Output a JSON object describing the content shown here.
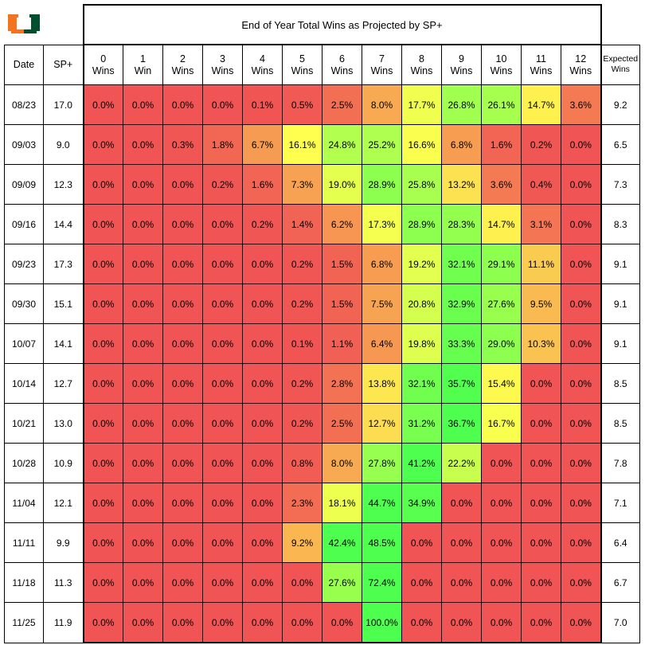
{
  "chart_data": {
    "type": "heatmap",
    "title": "End of Year Total Wins as Projected by SP+",
    "row_headers": [
      "Date",
      "SP+"
    ],
    "outcome_columns": [
      "0\nWins",
      "1\nWin",
      "2\nWins",
      "3\nWins",
      "4\nWins",
      "5\nWins",
      "6\nWins",
      "7\nWins",
      "8\nWins",
      "9\nWins",
      "10\nWins",
      "11\nWins",
      "12\nWins"
    ],
    "expected_header": "Expected\nWins",
    "rows": [
      {
        "date": "08/23",
        "sp": "17.0",
        "probs": [
          "0.0%",
          "0.0%",
          "0.0%",
          "0.0%",
          "0.1%",
          "0.5%",
          "2.5%",
          "8.0%",
          "17.7%",
          "26.8%",
          "26.1%",
          "14.7%",
          "3.6%"
        ],
        "expected": "9.2"
      },
      {
        "date": "09/03",
        "sp": "9.0",
        "probs": [
          "0.0%",
          "0.0%",
          "0.3%",
          "1.8%",
          "6.7%",
          "16.1%",
          "24.8%",
          "25.2%",
          "16.6%",
          "6.8%",
          "1.6%",
          "0.2%",
          "0.0%"
        ],
        "expected": "6.5"
      },
      {
        "date": "09/09",
        "sp": "12.3",
        "probs": [
          "0.0%",
          "0.0%",
          "0.0%",
          "0.2%",
          "1.6%",
          "7.3%",
          "19.0%",
          "28.9%",
          "25.8%",
          "13.2%",
          "3.6%",
          "0.4%",
          "0.0%"
        ],
        "expected": "7.3"
      },
      {
        "date": "09/16",
        "sp": "14.4",
        "probs": [
          "0.0%",
          "0.0%",
          "0.0%",
          "0.0%",
          "0.2%",
          "1.4%",
          "6.2%",
          "17.3%",
          "28.9%",
          "28.3%",
          "14.7%",
          "3.1%",
          "0.0%"
        ],
        "expected": "8.3"
      },
      {
        "date": "09/23",
        "sp": "17.3",
        "probs": [
          "0.0%",
          "0.0%",
          "0.0%",
          "0.0%",
          "0.0%",
          "0.2%",
          "1.5%",
          "6.8%",
          "19.2%",
          "32.1%",
          "29.1%",
          "11.1%",
          "0.0%"
        ],
        "expected": "9.1"
      },
      {
        "date": "09/30",
        "sp": "15.1",
        "probs": [
          "0.0%",
          "0.0%",
          "0.0%",
          "0.0%",
          "0.0%",
          "0.2%",
          "1.5%",
          "7.5%",
          "20.8%",
          "32.9%",
          "27.6%",
          "9.5%",
          "0.0%"
        ],
        "expected": "9.1"
      },
      {
        "date": "10/07",
        "sp": "14.1",
        "probs": [
          "0.0%",
          "0.0%",
          "0.0%",
          "0.0%",
          "0.0%",
          "0.1%",
          "1.1%",
          "6.4%",
          "19.8%",
          "33.3%",
          "29.0%",
          "10.3%",
          "0.0%"
        ],
        "expected": "9.1"
      },
      {
        "date": "10/14",
        "sp": "12.7",
        "probs": [
          "0.0%",
          "0.0%",
          "0.0%",
          "0.0%",
          "0.0%",
          "0.2%",
          "2.8%",
          "13.8%",
          "32.1%",
          "35.7%",
          "15.4%",
          "0.0%",
          "0.0%"
        ],
        "expected": "8.5"
      },
      {
        "date": "10/21",
        "sp": "13.0",
        "probs": [
          "0.0%",
          "0.0%",
          "0.0%",
          "0.0%",
          "0.0%",
          "0.2%",
          "2.5%",
          "12.7%",
          "31.2%",
          "36.7%",
          "16.7%",
          "0.0%",
          "0.0%"
        ],
        "expected": "8.5"
      },
      {
        "date": "10/28",
        "sp": "10.9",
        "probs": [
          "0.0%",
          "0.0%",
          "0.0%",
          "0.0%",
          "0.0%",
          "0.8%",
          "8.0%",
          "27.8%",
          "41.2%",
          "22.2%",
          "0.0%",
          "0.0%",
          "0.0%"
        ],
        "expected": "7.8"
      },
      {
        "date": "11/04",
        "sp": "12.1",
        "probs": [
          "0.0%",
          "0.0%",
          "0.0%",
          "0.0%",
          "0.0%",
          "2.3%",
          "18.1%",
          "44.7%",
          "34.9%",
          "0.0%",
          "0.0%",
          "0.0%",
          "0.0%"
        ],
        "expected": "7.1"
      },
      {
        "date": "11/11",
        "sp": "9.9",
        "probs": [
          "0.0%",
          "0.0%",
          "0.0%",
          "0.0%",
          "0.0%",
          "9.2%",
          "42.4%",
          "48.5%",
          "0.0%",
          "0.0%",
          "0.0%",
          "0.0%",
          "0.0%"
        ],
        "expected": "6.4"
      },
      {
        "date": "11/18",
        "sp": "11.3",
        "probs": [
          "0.0%",
          "0.0%",
          "0.0%",
          "0.0%",
          "0.0%",
          "0.0%",
          "27.6%",
          "72.4%",
          "0.0%",
          "0.0%",
          "0.0%",
          "0.0%",
          "0.0%"
        ],
        "expected": "6.7"
      },
      {
        "date": "11/25",
        "sp": "11.9",
        "probs": [
          "0.0%",
          "0.0%",
          "0.0%",
          "0.0%",
          "0.0%",
          "0.0%",
          "0.0%",
          "100.0%",
          "0.0%",
          "0.0%",
          "0.0%",
          "0.0%",
          "0.0%"
        ],
        "expected": "7.0"
      }
    ],
    "color_scale": {
      "low": "#f05454",
      "mid": "#ffff4f",
      "high": "#4fff4f",
      "mid_threshold": 16,
      "high_threshold": 36
    },
    "logo_colors": {
      "orange": "#f47321",
      "green": "#005030"
    }
  }
}
